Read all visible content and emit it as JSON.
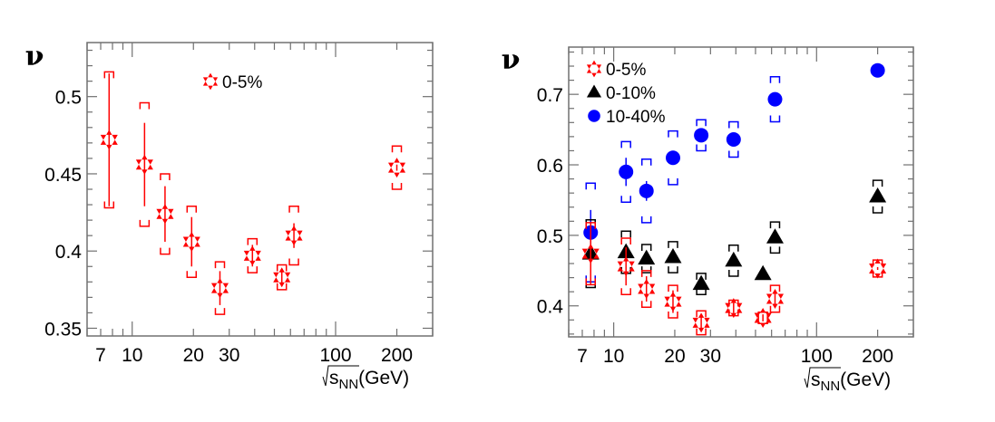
{
  "chart_data": [
    {
      "type": "scatter",
      "panel": "left",
      "title": "",
      "xlabel": "√s_NN(GeV)",
      "xlabel_parts": {
        "root": "s",
        "sub": "NN",
        "unit": "(GeV)"
      },
      "ylabel": "ν",
      "xscale": "log",
      "xlim": [
        6,
        300
      ],
      "ylim": [
        0.345,
        0.535
      ],
      "xticks": [
        7,
        10,
        20,
        30,
        100,
        200
      ],
      "xtick_labels": [
        "7",
        "10",
        "20",
        "30",
        "100",
        "200"
      ],
      "yticks": [
        0.35,
        0.4,
        0.45,
        0.5
      ],
      "ytick_labels": [
        "0.35",
        "0.4",
        "0.45",
        "0.5"
      ],
      "grid": false,
      "legend_position": "top-center",
      "series": [
        {
          "name": "0-5%",
          "marker": "star",
          "color": "#ff0000",
          "x": [
            7.7,
            11.5,
            14.5,
            19.6,
            27,
            39,
            54.4,
            62.4,
            200
          ],
          "y": [
            0.472,
            0.456,
            0.424,
            0.406,
            0.376,
            0.397,
            0.383,
            0.41,
            0.454
          ],
          "stat_err": [
            0.043,
            0.027,
            0.018,
            0.016,
            0.011,
            0.007,
            0.005,
            0.008,
            0.002
          ],
          "sys_err": [
            0.044,
            0.04,
            0.026,
            0.023,
            0.017,
            0.011,
            0.008,
            0.019,
            0.014
          ]
        }
      ]
    },
    {
      "type": "scatter",
      "panel": "right",
      "title": "",
      "xlabel": "√s_NN(GeV)",
      "xlabel_parts": {
        "root": "s",
        "sub": "NN",
        "unit": "(GeV)"
      },
      "ylabel": "ν",
      "xscale": "log",
      "xlim": [
        6,
        300
      ],
      "ylim": [
        0.356,
        0.767
      ],
      "xticks": [
        7,
        10,
        20,
        30,
        100,
        200
      ],
      "xtick_labels": [
        "7",
        "10",
        "20",
        "30",
        "100",
        "200"
      ],
      "yticks": [
        0.4,
        0.5,
        0.6,
        0.7
      ],
      "ytick_labels": [
        "0.4",
        "0.5",
        "0.6",
        "0.7"
      ],
      "grid": false,
      "legend_position": "top-left",
      "series": [
        {
          "name": "0-5%",
          "marker": "star",
          "color": "#ff0000",
          "x": [
            7.7,
            11.5,
            14.5,
            19.6,
            27,
            39,
            54.4,
            62.4,
            200
          ],
          "y": [
            0.474,
            0.456,
            0.424,
            0.406,
            0.376,
            0.397,
            0.383,
            0.41,
            0.453
          ],
          "stat_err": [
            0.043,
            0.027,
            0.018,
            0.016,
            0.011,
            0.007,
            0.005,
            0.008,
            0.002
          ],
          "sys_err": [
            0.044,
            0.04,
            0.026,
            0.023,
            0.017,
            0.011,
            0.008,
            0.019,
            0.012
          ]
        },
        {
          "name": "0-10%",
          "marker": "triangle",
          "color": "#000000",
          "x": [
            7.7,
            11.5,
            14.5,
            19.6,
            27,
            39,
            54.4,
            62.4,
            200
          ],
          "y": [
            0.474,
            0.476,
            0.467,
            0.469,
            0.431,
            0.464,
            0.445,
            0.497,
            0.555
          ],
          "stat_err": [
            0.004,
            0.004,
            0.003,
            0.003,
            0.003,
            0.003,
            0.002,
            0.004,
            0.002
          ],
          "sys_err": [
            0.048,
            0.03,
            0.02,
            0.022,
            0.015,
            0.022,
            null,
            0.022,
            0.023
          ]
        },
        {
          "name": "10-40%",
          "marker": "circle",
          "color": "#0000ff",
          "x": [
            7.7,
            11.5,
            14.5,
            19.6,
            27,
            39,
            62.4,
            200
          ],
          "y": [
            0.504,
            0.59,
            0.563,
            0.61,
            0.642,
            0.636,
            0.693,
            0.734
          ],
          "stat_err": [
            0.032,
            0.02,
            0.014,
            0.01,
            0.005,
            0.004,
            0.006,
            0.002
          ],
          "sys_err": [
            0.07,
            0.043,
            0.045,
            0.038,
            0.022,
            0.025,
            0.032,
            null
          ]
        }
      ]
    }
  ]
}
